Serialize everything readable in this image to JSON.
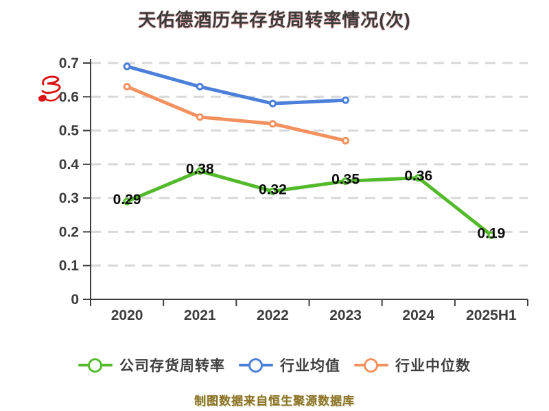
{
  "title": "天佑德酒历年存货周转率情况(次)",
  "footer": "制图数据来自恒生聚源数据库",
  "colors": {
    "title_text": "#3b3b3b",
    "axis": "#3f3f3f",
    "gridline": "#d8d8d8",
    "value_label": "#0b0b0b",
    "footer_text": "#8f7226",
    "watermark_red": "#d91414",
    "company_green": "#52ba2b",
    "industry_avg_blue": "#4b7fd9",
    "industry_median_orange": "#f2915e"
  },
  "chart_data": {
    "type": "line",
    "title": "天佑德酒历年存货周转率情况(次)",
    "categories": [
      "2020",
      "2021",
      "2022",
      "2023",
      "2024",
      "2025H1"
    ],
    "series": [
      {
        "id": "company-turnover",
        "name": "公司存货周转率",
        "color": "#52ba2b",
        "values": [
          0.29,
          0.38,
          0.32,
          0.35,
          0.36,
          0.19
        ],
        "point_labels": [
          "0.29",
          "0.38",
          "0.32",
          "0.35",
          "0.36",
          "0.19"
        ]
      },
      {
        "id": "industry-average",
        "name": "行业均值",
        "color": "#4b7fd9",
        "values": [
          0.69,
          0.63,
          0.58,
          0.59,
          null,
          null
        ]
      },
      {
        "id": "industry-median",
        "name": "行业中位数",
        "color": "#f2915e",
        "values": [
          0.63,
          0.54,
          0.52,
          0.47,
          null,
          null
        ]
      }
    ],
    "ylim": [
      0,
      0.7
    ],
    "y_ticks": [
      "0",
      "0.1",
      "0.2",
      "0.3",
      "0.4",
      "0.5",
      "0.6",
      "0.7"
    ],
    "xlabel": "",
    "ylabel": "",
    "grid": "horizontal dashed",
    "legend_position": "bottom"
  }
}
